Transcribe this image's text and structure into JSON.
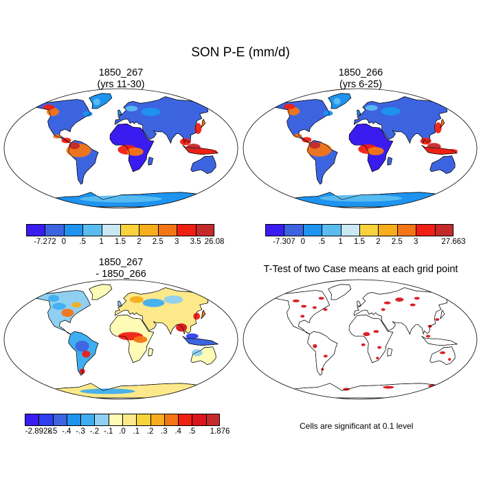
{
  "figure": {
    "title": "SON P-E (mm/d)",
    "note": "Cells are significant at 0.1 level"
  },
  "panels": [
    {
      "title_line1": "1850_267",
      "title_line2": "(yrs 11-30)",
      "colorbar": {
        "labels": [
          "-7.272",
          "0",
          ".5",
          "1",
          "1.5",
          "2",
          "2.5",
          "3",
          "3.5",
          "26.08"
        ],
        "colors": [
          "#3a1cf0",
          "#3d64e0",
          "#1e93ef",
          "#5bbcef",
          "#c9e8f4",
          "#f9d23c",
          "#f8ad1d",
          "#f47516",
          "#f01f14",
          "#c42a2a"
        ]
      }
    },
    {
      "title_line1": "1850_266",
      "title_line2": "(yrs 6-25)",
      "colorbar": {
        "labels": [
          "-7.307",
          "0",
          ".5",
          "1",
          "1.5",
          "2",
          "2.5",
          "3",
          "27.663"
        ],
        "colors": [
          "#3a1cf0",
          "#3d64e0",
          "#1e93ef",
          "#5bbcef",
          "#c9e8f4",
          "#f9d23c",
          "#f8ad1d",
          "#f47516",
          "#f01f14",
          "#c42a2a"
        ]
      }
    },
    {
      "title_line1": "1850_267",
      "title_line2": "- 1850_266",
      "colorbar": {
        "labels": [
          "-2.8928",
          "-.5",
          "-.4",
          "-.3",
          "-.2",
          "-.1",
          ".0",
          ".1",
          ".2",
          ".3",
          ".4",
          ".5",
          "1.876"
        ],
        "colors": [
          "#3a1cf0",
          "#2f3ef0",
          "#3d64e0",
          "#1e93ef",
          "#3faef0",
          "#8fd0f2",
          "#fdfbb5",
          "#fde98a",
          "#f9d23c",
          "#f8ad1d",
          "#f47516",
          "#f01f14",
          "#d8161b",
          "#c42a2a"
        ]
      }
    },
    {
      "title_line1": "T-Test of two Case means at each grid point",
      "title_line2": ""
    }
  ]
}
